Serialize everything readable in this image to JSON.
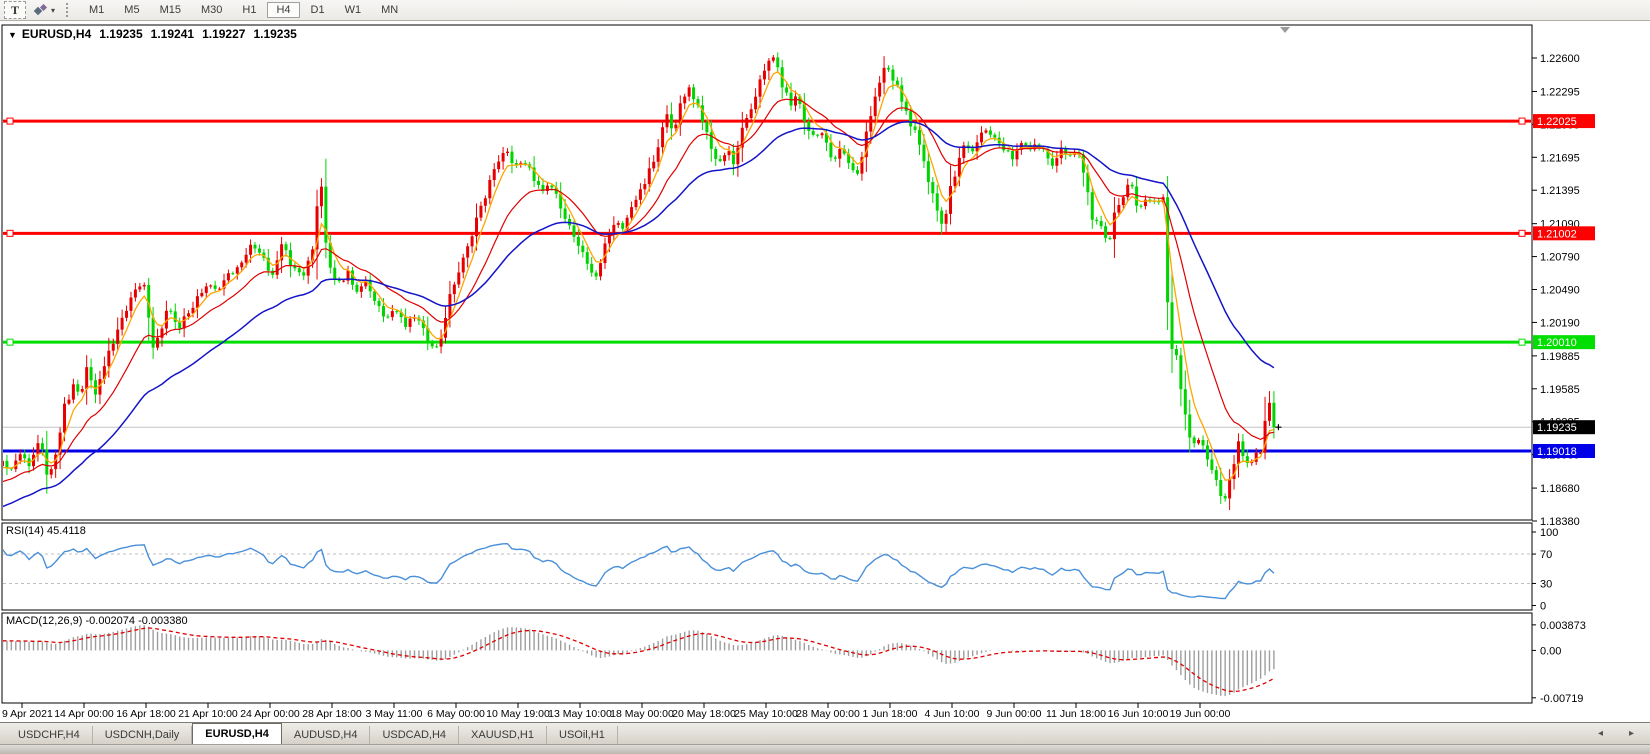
{
  "toolbar": {
    "text_tool_label": "T",
    "objects_tool_caret": "▾",
    "timeframes": [
      "M1",
      "M5",
      "M15",
      "M30",
      "H1",
      "H4",
      "D1",
      "W1",
      "MN"
    ],
    "active_timeframe": "H4"
  },
  "chart_header": {
    "collapse_icon": "▼",
    "symbol": "EURUSD,H4",
    "open": "1.19235",
    "high": "1.19241",
    "low": "1.19227",
    "close": "1.19235"
  },
  "price_axis": {
    "ticks": [
      "1.22600",
      "1.22295",
      "1.21995",
      "1.21695",
      "1.21395",
      "1.21090",
      "1.20790",
      "1.20490",
      "1.20190",
      "1.19885",
      "1.19585",
      "1.19285",
      "1.18985",
      "1.18680",
      "1.18380"
    ]
  },
  "hlines": [
    {
      "id": "resistance-1",
      "price": 1.22025,
      "label": "1.22025",
      "color": "#FF0000",
      "thickness": 3,
      "markers": true
    },
    {
      "id": "resistance-2",
      "price": 1.21002,
      "label": "1.21002",
      "color": "#FF0000",
      "thickness": 3,
      "markers": true
    },
    {
      "id": "support-1",
      "price": 1.2001,
      "label": "1.20010",
      "color": "#00DF00",
      "thickness": 3,
      "markers": true
    },
    {
      "id": "support-2",
      "price": 1.19018,
      "label": "1.19018",
      "color": "#0000E8",
      "thickness": 3,
      "markers": false
    }
  ],
  "bid_line": {
    "price": 1.19235,
    "label": "1.19235",
    "line_color": "#C4C4C4",
    "label_bg": "#000000",
    "label_fg": "#FFFFFF"
  },
  "chart_data": {
    "type": "candlestick",
    "symbol": "EURUSD",
    "timeframe": "H4",
    "title": "EURUSD,H4 1.19235 1.19241 1.19227 1.19235",
    "bull_color": "#E80000",
    "bear_color": "#00D400",
    "y_axis_range": [
      1.1837,
      1.2289
    ],
    "x_start": "9 Apr 2021",
    "x_end": "22 Jun 2021",
    "current_ohlc": {
      "open": 1.19235,
      "high": 1.19241,
      "low": 1.19227,
      "close": 1.19235
    },
    "moving_averages": [
      {
        "name": "fast-ma",
        "period": 5,
        "color": "#FFA500"
      },
      {
        "name": "medium-ma",
        "period": 16,
        "color": "#E00000"
      },
      {
        "name": "slow-ma",
        "period": 40,
        "color": "#1414C8"
      }
    ],
    "price_anchors": [
      [
        0,
        1.1895
      ],
      [
        10,
        1.188
      ],
      [
        20,
        1.1902
      ],
      [
        30,
        1.1888
      ],
      [
        40,
        1.1912
      ],
      [
        48,
        1.1875
      ],
      [
        55,
        1.1898
      ],
      [
        65,
        1.1945
      ],
      [
        73,
        1.196
      ],
      [
        80,
        1.1952
      ],
      [
        88,
        1.1982
      ],
      [
        96,
        1.195
      ],
      [
        104,
        1.198
      ],
      [
        112,
        1.2
      ],
      [
        122,
        1.2022
      ],
      [
        132,
        1.2042
      ],
      [
        145,
        1.2058
      ],
      [
        152,
        1.1992
      ],
      [
        158,
        1.2008
      ],
      [
        168,
        1.203
      ],
      [
        178,
        1.2015
      ],
      [
        188,
        1.2028
      ],
      [
        198,
        1.2042
      ],
      [
        208,
        1.2052
      ],
      [
        218,
        1.2046
      ],
      [
        228,
        1.2062
      ],
      [
        240,
        1.2075
      ],
      [
        252,
        1.2088
      ],
      [
        262,
        1.2078
      ],
      [
        272,
        1.2062
      ],
      [
        282,
        1.2088
      ],
      [
        292,
        1.2072
      ],
      [
        302,
        1.2058
      ],
      [
        312,
        1.208
      ],
      [
        318,
        1.2135
      ],
      [
        321,
        1.2148
      ],
      [
        326,
        1.209
      ],
      [
        332,
        1.206
      ],
      [
        340,
        1.2052
      ],
      [
        348,
        1.2068
      ],
      [
        356,
        1.2048
      ],
      [
        365,
        1.206
      ],
      [
        375,
        1.204
      ],
      [
        385,
        1.2022
      ],
      [
        395,
        1.203
      ],
      [
        405,
        1.2016
      ],
      [
        415,
        1.2024
      ],
      [
        424,
        1.2012
      ],
      [
        433,
        1.1992
      ],
      [
        441,
        1.2008
      ],
      [
        450,
        1.2045
      ],
      [
        458,
        1.2062
      ],
      [
        466,
        1.2082
      ],
      [
        474,
        1.2105
      ],
      [
        483,
        1.2128
      ],
      [
        492,
        1.2152
      ],
      [
        500,
        1.2168
      ],
      [
        508,
        1.2175
      ],
      [
        515,
        1.2162
      ],
      [
        523,
        1.217
      ],
      [
        532,
        1.2152
      ],
      [
        541,
        1.2138
      ],
      [
        550,
        1.215
      ],
      [
        559,
        1.2128
      ],
      [
        568,
        1.2108
      ],
      [
        578,
        1.2088
      ],
      [
        588,
        1.2072
      ],
      [
        597,
        1.2062
      ],
      [
        606,
        1.2092
      ],
      [
        614,
        1.2112
      ],
      [
        622,
        1.2104
      ],
      [
        630,
        1.212
      ],
      [
        640,
        1.2138
      ],
      [
        650,
        1.2158
      ],
      [
        658,
        1.2182
      ],
      [
        666,
        1.2208
      ],
      [
        673,
        1.2192
      ],
      [
        681,
        1.2218
      ],
      [
        689,
        1.2232
      ],
      [
        696,
        1.222
      ],
      [
        704,
        1.2196
      ],
      [
        712,
        1.2176
      ],
      [
        719,
        1.2162
      ],
      [
        727,
        1.218
      ],
      [
        734,
        1.2166
      ],
      [
        742,
        1.2192
      ],
      [
        750,
        1.2208
      ],
      [
        757,
        1.2228
      ],
      [
        764,
        1.2248
      ],
      [
        771,
        1.2262
      ],
      [
        777,
        1.225
      ],
      [
        784,
        1.2232
      ],
      [
        790,
        1.2216
      ],
      [
        797,
        1.2226
      ],
      [
        804,
        1.2202
      ],
      [
        812,
        1.2186
      ],
      [
        820,
        1.2196
      ],
      [
        827,
        1.2182
      ],
      [
        834,
        1.2166
      ],
      [
        842,
        1.2176
      ],
      [
        850,
        1.2162
      ],
      [
        857,
        1.2152
      ],
      [
        864,
        1.2182
      ],
      [
        872,
        1.2212
      ],
      [
        879,
        1.2236
      ],
      [
        886,
        1.2252
      ],
      [
        893,
        1.2242
      ],
      [
        901,
        1.2226
      ],
      [
        908,
        1.2206
      ],
      [
        915,
        1.2192
      ],
      [
        922,
        1.2172
      ],
      [
        929,
        1.2146
      ],
      [
        936,
        1.2122
      ],
      [
        943,
        1.2106
      ],
      [
        951,
        1.2142
      ],
      [
        959,
        1.2166
      ],
      [
        966,
        1.2182
      ],
      [
        973,
        1.2172
      ],
      [
        981,
        1.219
      ],
      [
        989,
        1.2194
      ],
      [
        996,
        1.2186
      ],
      [
        1004,
        1.2178
      ],
      [
        1012,
        1.217
      ],
      [
        1020,
        1.2184
      ],
      [
        1028,
        1.2174
      ],
      [
        1036,
        1.2182
      ],
      [
        1044,
        1.2176
      ],
      [
        1052,
        1.2162
      ],
      [
        1060,
        1.2176
      ],
      [
        1068,
        1.217
      ],
      [
        1076,
        1.218
      ],
      [
        1083,
        1.216
      ],
      [
        1088,
        1.2135
      ],
      [
        1093,
        1.2108
      ],
      [
        1098,
        1.2115
      ],
      [
        1103,
        1.2098
      ],
      [
        1108,
        1.209
      ],
      [
        1113,
        1.2112
      ],
      [
        1118,
        1.2126
      ],
      [
        1124,
        1.2136
      ],
      [
        1130,
        1.2146
      ],
      [
        1136,
        1.213
      ],
      [
        1141,
        1.2124
      ],
      [
        1146,
        1.2128
      ],
      [
        1151,
        1.2132
      ],
      [
        1156,
        1.2122
      ],
      [
        1160,
        1.2126
      ],
      [
        1164,
        1.213
      ],
      [
        1168,
        1.203
      ],
      [
        1172,
        1.1998
      ],
      [
        1176,
        1.1988
      ],
      [
        1180,
        1.1964
      ],
      [
        1184,
        1.194
      ],
      [
        1188,
        1.192
      ],
      [
        1192,
        1.1905
      ],
      [
        1196,
        1.1912
      ],
      [
        1200,
        1.1916
      ],
      [
        1204,
        1.1902
      ],
      [
        1208,
        1.1894
      ],
      [
        1212,
        1.1886
      ],
      [
        1216,
        1.1874
      ],
      [
        1220,
        1.1862
      ],
      [
        1224,
        1.185
      ],
      [
        1228,
        1.1868
      ],
      [
        1233,
        1.189
      ],
      [
        1238,
        1.1908
      ],
      [
        1243,
        1.1898
      ],
      [
        1248,
        1.1888
      ],
      [
        1252,
        1.1896
      ],
      [
        1256,
        1.1902
      ],
      [
        1260,
        1.1896
      ],
      [
        1264,
        1.1918
      ],
      [
        1267,
        1.1952
      ],
      [
        1271,
        1.1944
      ],
      [
        1276,
        1.19235
      ]
    ]
  },
  "rsi_panel": {
    "label": "RSI(14)",
    "value": "45.4118",
    "axis_ticks": [
      "100",
      "70",
      "30",
      "0"
    ],
    "axis_values": [
      100,
      70,
      30,
      0
    ],
    "levels": [
      70,
      30
    ],
    "line_color": "#4A90D9"
  },
  "macd_panel": {
    "label": "MACD(12,26,9)",
    "main_value": "-0.002074",
    "signal_value": "-0.003380",
    "axis_ticks": [
      "0.003873",
      "0.00",
      "-0.00719"
    ],
    "axis_values": [
      0.003873,
      0,
      -0.00719
    ],
    "hist_color": "#9E9E9E",
    "signal_color": "#E00000"
  },
  "time_axis": {
    "labels": [
      "9 Apr 2021",
      "14 Apr 00:00",
      "16 Apr 18:00",
      "21 Apr 10:00",
      "24 Apr 00:00",
      "28 Apr 18:00",
      "3 May 11:00",
      "6 May 00:00",
      "10 May 19:00",
      "13 May 10:00",
      "18 May 00:00",
      "20 May 18:00",
      "25 May 10:00",
      "28 May 00:00",
      "1 Jun 18:00",
      "4 Jun 10:00",
      "9 Jun 00:00",
      "11 Jun 18:00",
      "16 Jun 10:00",
      "19 Jun 00:00"
    ]
  },
  "tabs": {
    "items": [
      "USDCHF,H4",
      "USDCNH,Daily",
      "EURUSD,H4",
      "AUDUSD,H4",
      "USDCAD,H4",
      "XAUUSD,H1",
      "USOil,H1"
    ],
    "active": "EURUSD,H4",
    "scroll_left": "◂",
    "scroll_right": "▸"
  }
}
